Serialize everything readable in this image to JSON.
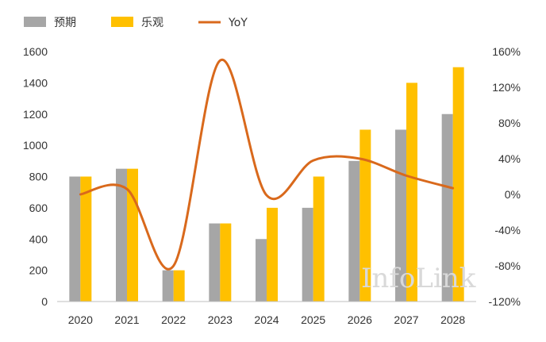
{
  "chart_data": {
    "type": "bar",
    "categories": [
      "2020",
      "2021",
      "2022",
      "2023",
      "2024",
      "2025",
      "2026",
      "2027",
      "2028"
    ],
    "series": [
      {
        "name": "预期",
        "type": "bar",
        "axis": "left",
        "color": "#a6a6a6",
        "values": [
          800,
          850,
          200,
          500,
          400,
          600,
          900,
          1100,
          1200
        ]
      },
      {
        "name": "乐观",
        "type": "bar",
        "axis": "left",
        "color": "#ffc000",
        "values": [
          800,
          850,
          200,
          500,
          600,
          800,
          1100,
          1400,
          1500
        ]
      },
      {
        "name": "YoY",
        "type": "line",
        "axis": "right",
        "color": "#d9691c",
        "smooth": true,
        "values": [
          0,
          6,
          -80,
          150,
          -1,
          38,
          40,
          21,
          7
        ]
      }
    ],
    "y_left": {
      "min": 0,
      "max": 1600,
      "ticks": [
        0,
        200,
        400,
        600,
        800,
        1000,
        1200,
        1400,
        1600
      ]
    },
    "y_right": {
      "min": -120,
      "max": 160,
      "ticks": [
        -120,
        -80,
        -40,
        0,
        40,
        80,
        120,
        160
      ],
      "format": "percent"
    },
    "legend_position": "top-left",
    "grid": false,
    "watermark": "InfoLink"
  }
}
